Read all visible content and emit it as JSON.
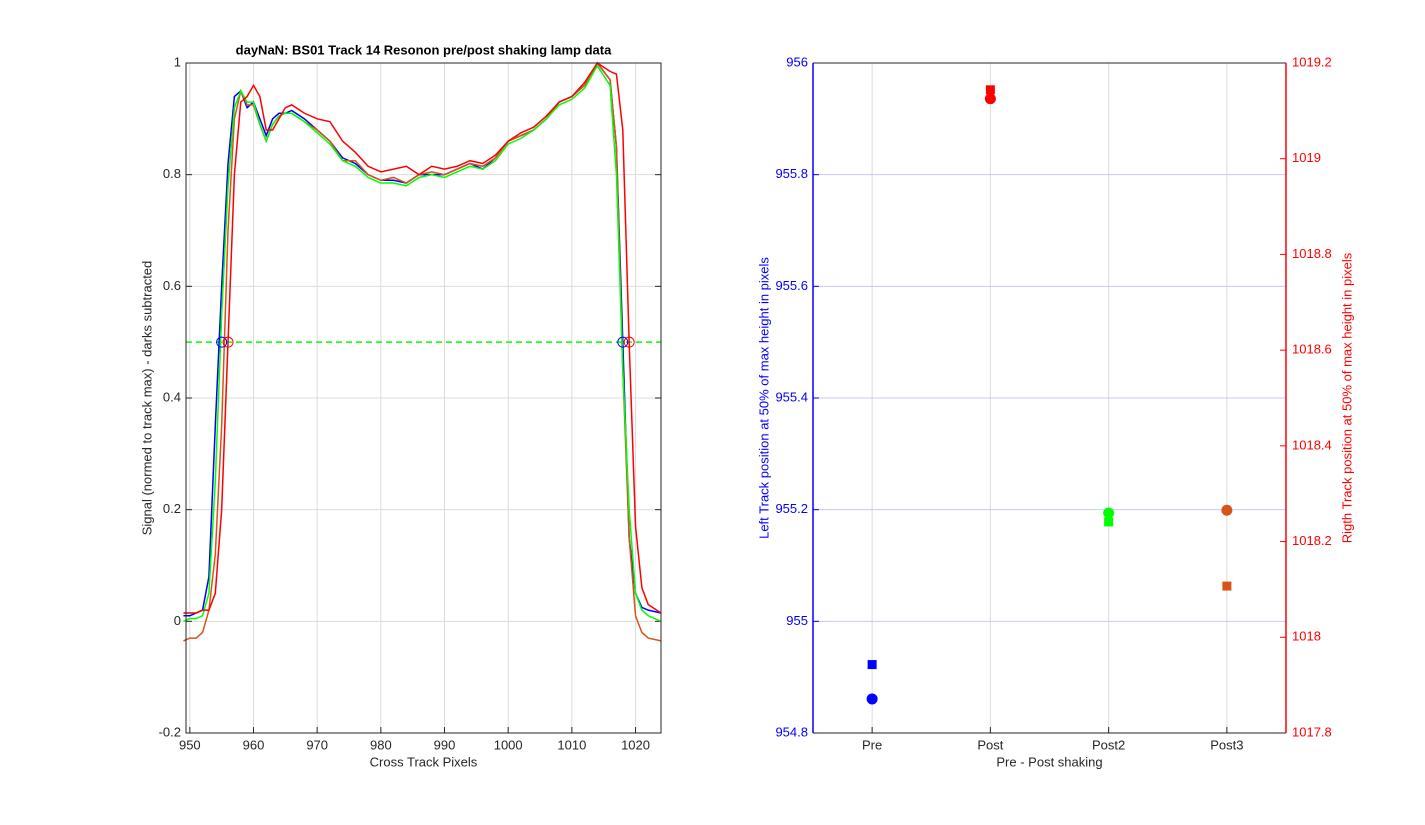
{
  "chart_data": [
    {
      "type": "line",
      "title": "dayNaN: BS01  Track 14 Resonon pre/post shaking lamp data",
      "x_label": "Cross Track Pixels",
      "y_label": "Signal (normed to track max) - darks subtracted",
      "x": [
        949,
        950,
        951,
        952,
        953,
        954,
        955,
        956,
        957,
        958,
        959,
        960,
        961,
        962,
        963,
        964,
        965,
        966,
        968,
        970,
        972,
        974,
        976,
        978,
        980,
        982,
        984,
        986,
        988,
        990,
        992,
        994,
        996,
        998,
        1000,
        1002,
        1004,
        1006,
        1008,
        1010,
        1012,
        1014,
        1016,
        1017,
        1018,
        1019,
        1020,
        1021,
        1022,
        1024
      ],
      "series": [
        {
          "color": "#0000ff",
          "values": [
            0.01,
            0.01,
            0.015,
            0.02,
            0.08,
            0.35,
            0.6,
            0.82,
            0.94,
            0.95,
            0.92,
            0.93,
            0.9,
            0.87,
            0.9,
            0.91,
            0.91,
            0.915,
            0.9,
            0.88,
            0.86,
            0.83,
            0.82,
            0.8,
            0.79,
            0.79,
            0.785,
            0.8,
            0.8,
            0.8,
            0.81,
            0.82,
            0.81,
            0.83,
            0.86,
            0.87,
            0.88,
            0.9,
            0.93,
            0.94,
            0.96,
            1.0,
            0.97,
            0.85,
            0.5,
            0.15,
            0.05,
            0.025,
            0.02,
            0.015
          ]
        },
        {
          "color": "#d95319",
          "values": [
            -0.035,
            -0.03,
            -0.03,
            -0.02,
            0.02,
            0.12,
            0.35,
            0.7,
            0.9,
            0.95,
            0.925,
            0.925,
            0.89,
            0.86,
            0.89,
            0.905,
            0.91,
            0.91,
            0.895,
            0.88,
            0.86,
            0.825,
            0.825,
            0.8,
            0.79,
            0.795,
            0.785,
            0.8,
            0.805,
            0.8,
            0.81,
            0.82,
            0.815,
            0.83,
            0.86,
            0.87,
            0.88,
            0.9,
            0.93,
            0.94,
            0.96,
            1.0,
            0.97,
            0.85,
            0.45,
            0.15,
            0.01,
            -0.02,
            -0.03,
            -0.035
          ]
        },
        {
          "color": "#00ff00",
          "values": [
            0.0,
            0.005,
            0.005,
            0.01,
            0.05,
            0.25,
            0.55,
            0.78,
            0.92,
            0.95,
            0.93,
            0.93,
            0.89,
            0.86,
            0.89,
            0.905,
            0.91,
            0.91,
            0.895,
            0.875,
            0.855,
            0.825,
            0.815,
            0.795,
            0.785,
            0.785,
            0.78,
            0.795,
            0.8,
            0.795,
            0.805,
            0.815,
            0.81,
            0.825,
            0.855,
            0.865,
            0.88,
            0.9,
            0.925,
            0.935,
            0.955,
            0.995,
            0.96,
            0.8,
            0.45,
            0.2,
            0.05,
            0.02,
            0.01,
            0.0
          ]
        },
        {
          "color": "#ff0000",
          "values": [
            0.015,
            0.015,
            0.015,
            0.02,
            0.02,
            0.05,
            0.2,
            0.5,
            0.8,
            0.93,
            0.94,
            0.96,
            0.94,
            0.88,
            0.88,
            0.9,
            0.92,
            0.925,
            0.91,
            0.9,
            0.895,
            0.86,
            0.84,
            0.815,
            0.805,
            0.81,
            0.815,
            0.8,
            0.815,
            0.81,
            0.815,
            0.825,
            0.82,
            0.835,
            0.86,
            0.875,
            0.885,
            0.905,
            0.93,
            0.94,
            0.965,
            1.0,
            0.985,
            0.98,
            0.88,
            0.5,
            0.17,
            0.06,
            0.03,
            0.015
          ]
        }
      ],
      "hlines": [
        {
          "value": 0.5,
          "color": "#00ff00",
          "dashed": true
        }
      ],
      "markers": [
        {
          "x": 955,
          "y": 0.5,
          "color": "#0000ff"
        },
        {
          "x": 956,
          "y": 0.5,
          "color": "#ff0000"
        },
        {
          "x": 1018,
          "y": 0.5,
          "color": "#0000ff"
        },
        {
          "x": 1019,
          "y": 0.5,
          "color": "#ff0000"
        }
      ],
      "xlim": [
        949.4,
        1024
      ],
      "xticks": [
        950,
        960,
        970,
        980,
        990,
        1000,
        1010,
        1020
      ],
      "ylim": [
        -0.2,
        1
      ],
      "yticks": [
        -0.2,
        0,
        0.2,
        0.4,
        0.6,
        0.8,
        1
      ],
      "grid": true
    },
    {
      "type": "scatter",
      "x_label": "Pre - Post shaking",
      "y_label": "Left Track position at 50% of max height in pixels",
      "y2_label": "Rigth Track position at 50% of max height in pixels",
      "y_color": "#0000ff",
      "y2_color": "#ff0000",
      "categories": [
        "Pre",
        "Post",
        "Post2",
        "Post3"
      ],
      "series": [
        {
          "marker": "circle",
          "colors": [
            "#0000ff",
            "#ff0000",
            "#00ff00",
            "#d95319"
          ],
          "values": [
            954.861,
            955.936,
            955.194,
            955.199
          ]
        },
        {
          "marker": "square",
          "axis": "y2",
          "colors": [
            "#0000ff",
            "#ff0000",
            "#00ff00",
            "#d95319"
          ],
          "values": [
            1017.943,
            1019.144,
            1018.241,
            1018.107
          ]
        }
      ],
      "ylim": [
        954.8,
        956
      ],
      "yticks": [
        954.8,
        955,
        955.2,
        955.4,
        955.6,
        955.8,
        956
      ],
      "y2lim": [
        1017.8,
        1019.2
      ],
      "y2ticks": [
        1017.8,
        1018,
        1018.2,
        1018.4,
        1018.6,
        1018.8,
        1019,
        1019.2
      ],
      "grid": true
    }
  ]
}
